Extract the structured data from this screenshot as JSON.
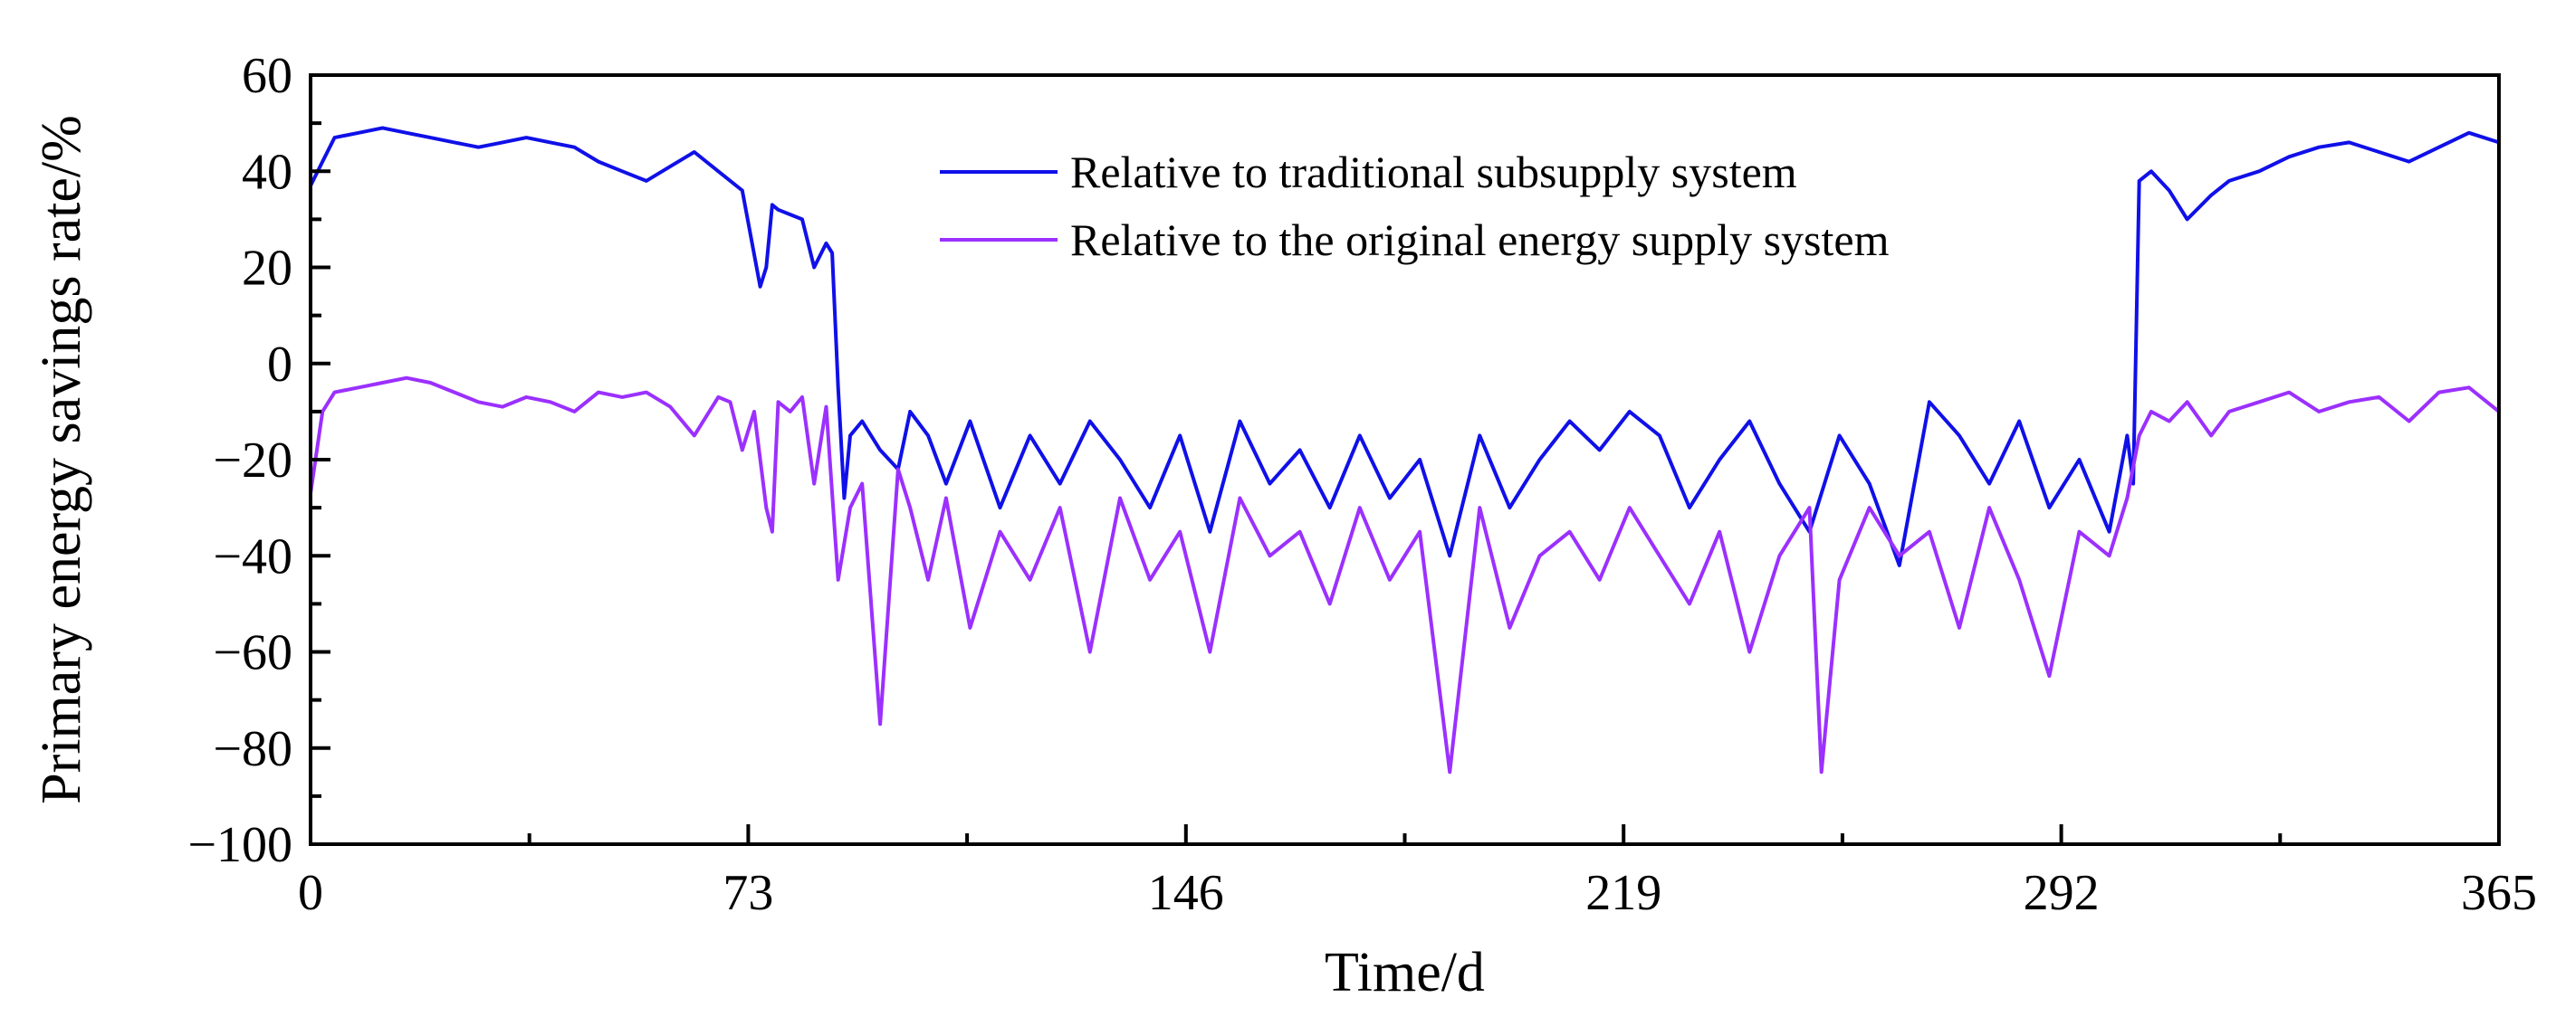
{
  "chart_data": {
    "type": "line",
    "title": "",
    "xlabel": "Time/d",
    "ylabel": "Primary energy savings rate/%",
    "xlim": [
      0,
      365
    ],
    "ylim": [
      -100,
      60
    ],
    "xticks": [
      0,
      73,
      146,
      219,
      292,
      365
    ],
    "xtick_labels": [
      "0",
      "73",
      "146",
      "219",
      "292",
      "365"
    ],
    "yticks": [
      60,
      40,
      20,
      0,
      -20,
      -40,
      -60,
      -80,
      -100
    ],
    "ytick_labels": [
      "60",
      "40",
      "20",
      "0",
      "−20",
      "−40",
      "−60",
      "−80",
      "−100"
    ],
    "grid": false,
    "legend_position": "top-center",
    "series": [
      {
        "name": "Relative to traditional subsupply system",
        "color": "#1010e8",
        "x": [
          0,
          2,
          4,
          8,
          12,
          16,
          20,
          24,
          28,
          32,
          36,
          40,
          44,
          48,
          52,
          56,
          60,
          64,
          68,
          72,
          75,
          76,
          77,
          78,
          80,
          82,
          84,
          86,
          87,
          88,
          89,
          90,
          92,
          95,
          98,
          100,
          103,
          106,
          110,
          115,
          120,
          125,
          130,
          135,
          140,
          145,
          150,
          155,
          160,
          165,
          170,
          175,
          180,
          185,
          190,
          195,
          200,
          205,
          210,
          215,
          220,
          225,
          230,
          235,
          240,
          245,
          250,
          255,
          260,
          265,
          270,
          275,
          280,
          285,
          290,
          295,
          300,
          303,
          304,
          305,
          307,
          310,
          313,
          317,
          320,
          325,
          330,
          335,
          340,
          345,
          350,
          355,
          360,
          365
        ],
        "values": [
          37,
          42,
          47,
          48,
          49,
          48,
          47,
          46,
          45,
          46,
          47,
          46,
          45,
          42,
          40,
          38,
          41,
          44,
          40,
          36,
          16,
          20,
          33,
          32,
          31,
          30,
          20,
          25,
          23,
          -5,
          -28,
          -15,
          -12,
          -18,
          -22,
          -10,
          -15,
          -25,
          -12,
          -30,
          -15,
          -25,
          -12,
          -20,
          -30,
          -15,
          -35,
          -12,
          -25,
          -18,
          -30,
          -15,
          -28,
          -20,
          -40,
          -15,
          -30,
          -20,
          -12,
          -18,
          -10,
          -15,
          -30,
          -20,
          -12,
          -25,
          -35,
          -15,
          -25,
          -42,
          -8,
          -15,
          -25,
          -12,
          -30,
          -20,
          -35,
          -15,
          -25,
          38,
          40,
          36,
          30,
          35,
          38,
          40,
          43,
          45,
          46,
          44,
          42,
          45,
          48,
          46
        ]
      },
      {
        "name": "Relative to the original energy supply system",
        "color": "#9b30ff",
        "x": [
          0,
          2,
          4,
          8,
          12,
          16,
          20,
          24,
          28,
          32,
          36,
          40,
          44,
          48,
          52,
          56,
          60,
          64,
          68,
          70,
          72,
          74,
          76,
          77,
          78,
          80,
          82,
          84,
          86,
          88,
          90,
          92,
          95,
          98,
          100,
          103,
          106,
          110,
          115,
          120,
          125,
          130,
          135,
          140,
          145,
          150,
          155,
          160,
          165,
          170,
          175,
          180,
          185,
          190,
          195,
          200,
          205,
          210,
          215,
          220,
          225,
          230,
          235,
          240,
          245,
          250,
          252,
          255,
          260,
          265,
          270,
          275,
          280,
          285,
          290,
          295,
          300,
          303,
          305,
          307,
          310,
          313,
          317,
          320,
          325,
          330,
          335,
          340,
          345,
          350,
          355,
          360,
          365
        ],
        "values": [
          -27,
          -10,
          -6,
          -5,
          -4,
          -3,
          -4,
          -6,
          -8,
          -9,
          -7,
          -8,
          -10,
          -6,
          -7,
          -6,
          -9,
          -15,
          -7,
          -8,
          -18,
          -10,
          -30,
          -35,
          -8,
          -10,
          -7,
          -25,
          -9,
          -45,
          -30,
          -25,
          -75,
          -22,
          -30,
          -45,
          -28,
          -55,
          -35,
          -45,
          -30,
          -60,
          -28,
          -45,
          -35,
          -60,
          -28,
          -40,
          -35,
          -50,
          -30,
          -45,
          -35,
          -85,
          -30,
          -55,
          -40,
          -35,
          -45,
          -30,
          -40,
          -50,
          -35,
          -60,
          -40,
          -30,
          -85,
          -45,
          -30,
          -40,
          -35,
          -55,
          -30,
          -45,
          -65,
          -35,
          -40,
          -28,
          -15,
          -10,
          -12,
          -8,
          -15,
          -10,
          -8,
          -6,
          -10,
          -8,
          -7,
          -12,
          -6,
          -5,
          -10
        ]
      }
    ]
  }
}
